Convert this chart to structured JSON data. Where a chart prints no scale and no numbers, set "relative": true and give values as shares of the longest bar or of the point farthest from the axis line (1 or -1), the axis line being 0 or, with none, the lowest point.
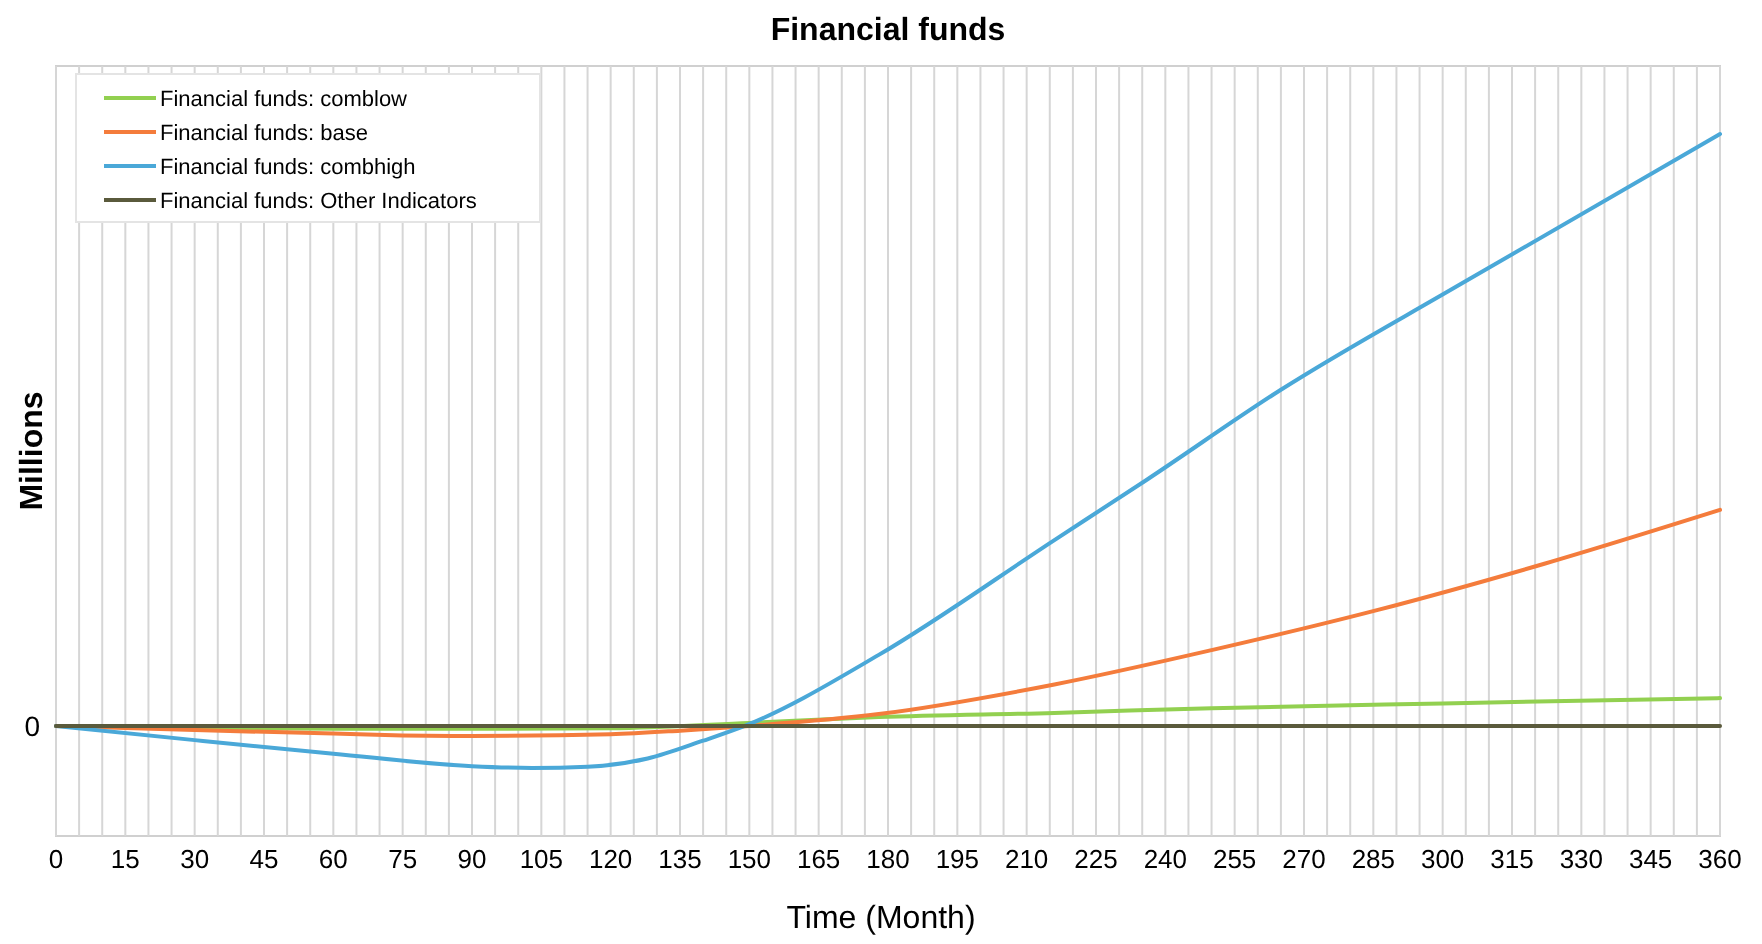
{
  "chart_data": {
    "type": "line",
    "title": "Financial funds",
    "xlabel": "Time (Month)",
    "ylabel": "Millions",
    "relative": true,
    "xlim": [
      0,
      360
    ],
    "xticks": [
      0,
      {
        "value": 5,
        "label": null
      },
      {
        "value": 10,
        "label": null
      },
      15,
      {
        "value": 20,
        "label": null
      },
      {
        "value": 25,
        "label": null
      },
      30,
      {
        "value": 35,
        "label": null
      },
      {
        "value": 40,
        "label": null
      },
      45,
      {
        "value": 50,
        "label": null
      },
      {
        "value": 55,
        "label": null
      },
      60,
      {
        "value": 65,
        "label": null
      },
      {
        "value": 70,
        "label": null
      },
      75,
      {
        "value": 80,
        "label": null
      },
      {
        "value": 85,
        "label": null
      },
      90,
      {
        "value": 95,
        "label": null
      },
      {
        "value": 100,
        "label": null
      },
      105,
      {
        "value": 110,
        "label": null
      },
      {
        "value": 115,
        "label": null
      },
      120,
      {
        "value": 125,
        "label": null
      },
      {
        "value": 130,
        "label": null
      },
      135,
      {
        "value": 140,
        "label": null
      },
      {
        "value": 145,
        "label": null
      },
      150,
      {
        "value": 155,
        "label": null
      },
      {
        "value": 160,
        "label": null
      },
      165,
      {
        "value": 170,
        "label": null
      },
      {
        "value": 175,
        "label": null
      },
      180,
      {
        "value": 185,
        "label": null
      },
      {
        "value": 190,
        "label": null
      },
      195,
      {
        "value": 200,
        "label": null
      },
      {
        "value": 205,
        "label": null
      },
      210,
      {
        "value": 215,
        "label": null
      },
      {
        "value": 220,
        "label": null
      },
      225,
      {
        "value": 230,
        "label": null
      },
      {
        "value": 235,
        "label": null
      },
      240,
      {
        "value": 245,
        "label": null
      },
      {
        "value": 250,
        "label": null
      },
      255,
      {
        "value": 260,
        "label": null
      },
      {
        "value": 265,
        "label": null
      },
      270,
      {
        "value": 275,
        "label": null
      },
      {
        "value": 280,
        "label": null
      },
      285,
      {
        "value": 290,
        "label": null
      },
      {
        "value": 295,
        "label": null
      },
      300,
      {
        "value": 305,
        "label": null
      },
      {
        "value": 310,
        "label": null
      },
      315,
      {
        "value": 320,
        "label": null
      },
      {
        "value": 325,
        "label": null
      },
      330,
      {
        "value": 335,
        "label": null
      },
      {
        "value": 340,
        "label": null
      },
      345,
      {
        "value": 350,
        "label": null
      },
      {
        "value": 355,
        "label": null
      },
      360
    ],
    "annotations": [
      "0"
    ],
    "grid": "x",
    "legend": "top left",
    "series": [
      {
        "name": "Financial funds: comblow",
        "color": "#92d050",
        "x": [
          0,
          30,
          60,
          90,
          120,
          150,
          178,
          216,
          250,
          300,
          360
        ],
        "values": [
          0,
          -0.003,
          -0.005,
          -0.005,
          -0.004,
          0.005,
          0.015,
          0.022,
          0.03,
          0.038,
          0.047
        ]
      },
      {
        "name": "Financial funds: base",
        "color": "#f47c3c",
        "x": [
          0,
          30,
          60,
          75,
          90,
          120,
          135,
          150,
          178,
          216,
          250,
          286,
          322,
          360
        ],
        "values": [
          0,
          -0.007,
          -0.013,
          -0.016,
          -0.017,
          -0.014,
          -0.008,
          0,
          0.02,
          0.07,
          0.128,
          0.196,
          0.274,
          0.365
        ]
      },
      {
        "name": "Financial funds: combhigh",
        "color": "#4aa8d8",
        "x": [
          0,
          30,
          60,
          90,
          103,
          115,
          128,
          140,
          149,
          178,
          216,
          236,
          265,
          304,
          360
        ],
        "values": [
          0,
          -0.024,
          -0.047,
          -0.068,
          -0.071,
          -0.069,
          -0.055,
          -0.025,
          0,
          0.12,
          0.314,
          0.416,
          0.568,
          0.747,
          1
        ]
      },
      {
        "name": "Financial funds: Other Indicators",
        "color": "#5a5a3c",
        "x": [
          0,
          360
        ],
        "values": [
          0,
          0
        ]
      }
    ]
  }
}
